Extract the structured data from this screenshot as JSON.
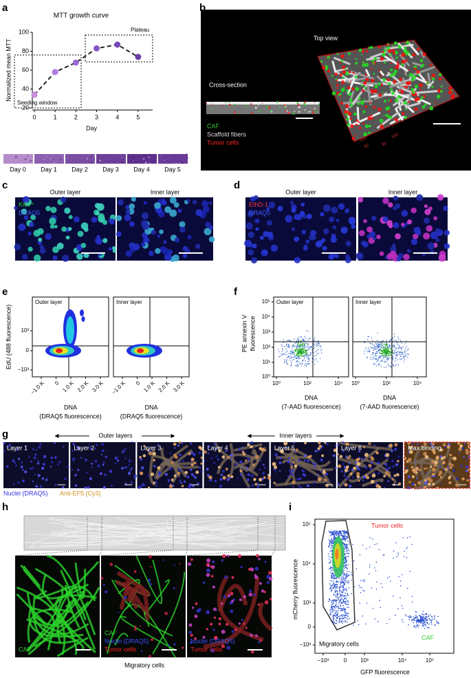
{
  "chart_data": {
    "type": "line",
    "title": "MTT growth curve",
    "x_label": "Day",
    "y_label": "Normalized mean MTT",
    "x": [
      0,
      1,
      2,
      3,
      4,
      5
    ],
    "values": [
      34,
      58,
      68,
      83,
      87,
      74
    ],
    "xlim": [
      0,
      5.7
    ],
    "ylim": [
      20,
      100
    ],
    "xticks": [
      0,
      1,
      2,
      3,
      4,
      5
    ],
    "yticks": [
      20,
      40,
      60,
      80,
      100
    ],
    "line_color": "#222",
    "line_style": "dashed",
    "point_colors": [
      "#c98be0",
      "#b07ae0",
      "#9a68d6",
      "#8458c8",
      "#7448b8",
      "#6a3ea8"
    ],
    "annotations": [
      "Seeding window",
      "Plateau"
    ]
  },
  "panels": {
    "a": {
      "letter": "a",
      "strip_labels": [
        "Day 0",
        "Day 1",
        "Day 2",
        "Day 3",
        "Day 4",
        "Day 5"
      ]
    },
    "b": {
      "letter": "b",
      "cross_section": "Cross-section",
      "top_view": "Top view",
      "legend": [
        "CAF",
        "Scaffold fibers",
        "Tumor cells"
      ],
      "axis_numbers": [
        "100",
        "50",
        "100",
        "50"
      ]
    },
    "c": {
      "letter": "c",
      "columns": [
        "Outer layer",
        "Inner layer"
      ],
      "stains": [
        "Ki67⁺",
        "DRAQ5"
      ]
    },
    "d": {
      "letter": "d",
      "columns": [
        "Outer layer",
        "Inner layer"
      ],
      "stains": [
        "EthD-1",
        "DRAQ5"
      ]
    },
    "e": {
      "letter": "e",
      "y_label": "EdU (488 fluorescence)",
      "yticks": [
        "10³",
        "0",
        "−10³"
      ],
      "xticks": [
        "−1.0 K",
        "0",
        "1.0 K",
        "2.0 K",
        "3.0 K"
      ],
      "plots": [
        {
          "label": "Outer layer",
          "x_label": [
            "DNA",
            "(DRAQ5 fluorescence)"
          ]
        },
        {
          "label": "Inner layer",
          "x_label": [
            "DNA",
            "(DRAQ5 fluorescence)"
          ]
        }
      ]
    },
    "f": {
      "letter": "f",
      "y_label": [
        "PE annexin V",
        "fluorescence"
      ],
      "yticks": [
        "10⁵",
        "10⁴",
        "10³",
        "10²",
        "10¹",
        "10⁰"
      ],
      "xticks": [
        "10⁰",
        "10²",
        "10⁴"
      ],
      "plots": [
        {
          "label": "Outer layer",
          "x_label": [
            "DNA",
            "(7-AAD fluorescence)"
          ]
        },
        {
          "label": "Inner layer",
          "x_label": [
            "DNA",
            "(7-AAD fluorescence)"
          ]
        }
      ]
    },
    "g": {
      "letter": "g",
      "groups": [
        "Outer layers",
        "Inner layers"
      ],
      "tiles": [
        "Layer 1",
        "Layer 2",
        "Layer 3",
        "Layer 4",
        "Layer 5",
        "Layer 6",
        "Max binding"
      ],
      "legend": [
        "Nuclei (DRAQ5)",
        "Anti-EF5 (Cy3)"
      ]
    },
    "h": {
      "letter": "h",
      "image_labels": [
        [
          "CAF"
        ],
        [
          "CAF",
          "Nuclei (DRAQ5)",
          "Tumor cells"
        ],
        [
          "Nuclei (DRAQ5)",
          "Tumor cells"
        ]
      ],
      "caption": "Migratory cells"
    },
    "i": {
      "letter": "i",
      "y_label": "mCherry fluorescence",
      "x_label": "GFP fluorescence",
      "yticks": [
        "10⁵",
        "10⁴",
        "10³",
        "0",
        "−10³"
      ],
      "xticks": [
        "−10³",
        "0",
        "10³",
        "10⁴",
        "10⁵"
      ],
      "gates": [
        "Tumor cells",
        "CAF",
        "Migratory cells"
      ]
    }
  }
}
